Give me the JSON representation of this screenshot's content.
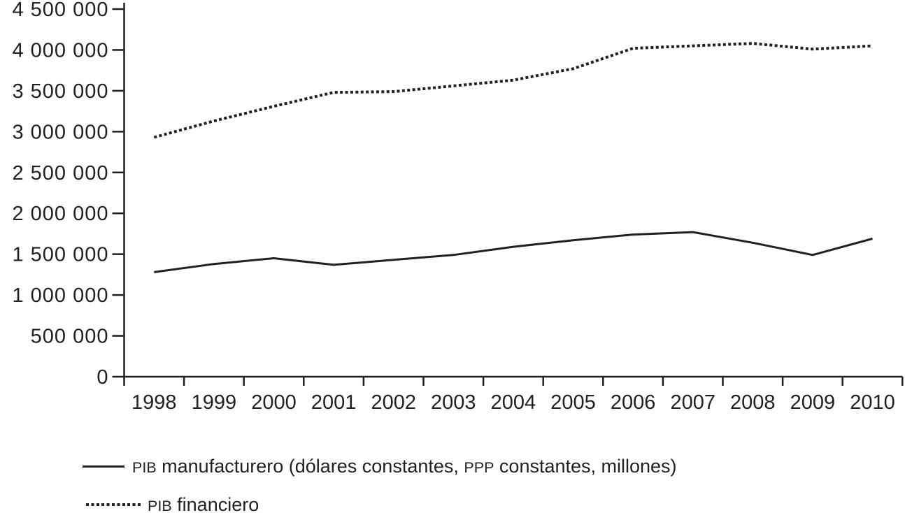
{
  "figure": {
    "background": "#ffffff",
    "ink_color": "#231f20"
  },
  "chart_data": {
    "type": "line",
    "x": [
      1998,
      1999,
      2000,
      2001,
      2002,
      2003,
      2004,
      2005,
      2006,
      2007,
      2008,
      2009,
      2010
    ],
    "series": [
      {
        "name": "PIB manufacturero (dólares constantes, PPP constantes, millones)",
        "line_style": "solid",
        "color": "#231f20",
        "values": [
          1280000,
          1380000,
          1450000,
          1370000,
          1430000,
          1490000,
          1590000,
          1670000,
          1740000,
          1770000,
          1640000,
          1490000,
          1690000
        ]
      },
      {
        "name": "PIB financiero",
        "line_style": "dotted",
        "color": "#231f20",
        "values": [
          2930000,
          3130000,
          3310000,
          3480000,
          3490000,
          3560000,
          3630000,
          3770000,
          4020000,
          4050000,
          4080000,
          4010000,
          4050000
        ]
      }
    ],
    "title": "",
    "xlabel": "",
    "ylabel": "",
    "ylim": [
      0,
      4500000
    ],
    "ytick_step": 500000,
    "ytick_labels": [
      "0",
      "500 000",
      "1 000 000",
      "1 500 000",
      "2 000 000",
      "2 500 000",
      "3 000 000",
      "3 500 000",
      "4 000 000",
      "4 500 000"
    ],
    "xtick_labels": [
      "1998",
      "1999",
      "2000",
      "2001",
      "2002",
      "2003",
      "2004",
      "2005",
      "2006",
      "2007",
      "2008",
      "2009",
      "2010"
    ],
    "grid": false,
    "legend_position": "bottom-left"
  },
  "legend": {
    "entries": [
      {
        "swatch": "solid-line",
        "parts": [
          {
            "text": "PIB",
            "caps": true
          },
          {
            "text": " manufacturero (dólares constantes, ",
            "caps": false
          },
          {
            "text": "PPP",
            "caps": true
          },
          {
            "text": " constantes, millones)",
            "caps": false
          }
        ]
      },
      {
        "swatch": "dotted-line",
        "parts": [
          {
            "text": "PIB",
            "caps": true
          },
          {
            "text": " financiero",
            "caps": false
          }
        ]
      }
    ]
  }
}
